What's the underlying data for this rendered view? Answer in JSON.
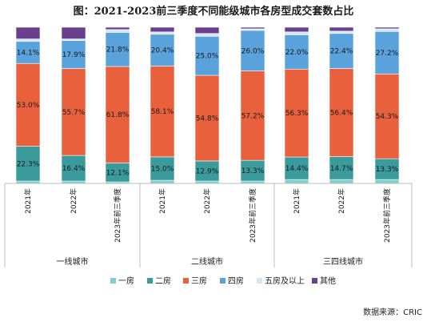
{
  "title": "图：2021-2023前三季度不同能级城市各房型成交套数占比",
  "source": "数据来源：CRIC",
  "chart_data": {
    "type": "bar",
    "stacked": true,
    "percent": true,
    "ylim": [
      0,
      100
    ],
    "groups": [
      {
        "name": "一线城市",
        "categories": [
          "2021年",
          "2022年",
          "2023年前三季度"
        ]
      },
      {
        "name": "二线城市",
        "categories": [
          "2021年",
          "2022年",
          "2023年前三季度"
        ]
      },
      {
        "name": "三四线城市",
        "categories": [
          "2021年",
          "2022年",
          "2023年前三季度"
        ]
      }
    ],
    "categories": [
      "2021年",
      "2022年",
      "2023年前三季度",
      "2021年",
      "2022年",
      "2023年前三季度",
      "2021年",
      "2022年",
      "2023年前三季度"
    ],
    "series": [
      {
        "name": "一房",
        "color": "#7fd0cc",
        "values": [
          1.5,
          1.5,
          1.0,
          2.0,
          1.5,
          1.5,
          2.5,
          2.5,
          2.5
        ],
        "labels": [
          "",
          "",
          "",
          "",
          "",
          "",
          "",
          "",
          ""
        ]
      },
      {
        "name": "二房",
        "color": "#3a9a9c",
        "values": [
          22.3,
          16.4,
          12.1,
          15.0,
          12.9,
          13.3,
          14.4,
          14.7,
          13.3
        ],
        "labels": [
          "22.3%",
          "16.4%",
          "12.1%",
          "15.0%",
          "12.9%",
          "13.3%",
          "14.4%",
          "14.7%",
          "13.3%"
        ]
      },
      {
        "name": "三房",
        "color": "#e8603c",
        "values": [
          53.0,
          55.7,
          61.8,
          58.1,
          54.8,
          57.2,
          56.3,
          56.4,
          54.3
        ],
        "labels": [
          "53.0%",
          "55.7%",
          "61.8%",
          "58.1%",
          "54.8%",
          "57.2%",
          "56.3%",
          "56.4%",
          "54.3%"
        ]
      },
      {
        "name": "四房",
        "color": "#5aa2dc",
        "values": [
          14.1,
          17.9,
          21.8,
          20.4,
          25.0,
          26.0,
          22.0,
          22.4,
          27.2
        ],
        "labels": [
          "14.1%",
          "17.9%",
          "21.8%",
          "20.4%",
          "25.0%",
          "26.0%",
          "22.0%",
          "22.4%",
          "27.2%"
        ]
      },
      {
        "name": "五房及以上",
        "color": "#d3e7f0",
        "values": [
          1.6,
          1.0,
          1.8,
          1.5,
          1.8,
          1.0,
          1.8,
          1.5,
          1.7
        ],
        "labels": [
          "",
          "",
          "",
          "",
          "",
          "",
          "",
          "",
          ""
        ]
      },
      {
        "name": "其他",
        "color": "#6a3f8e",
        "values": [
          7.5,
          7.5,
          1.5,
          3.0,
          4.0,
          1.0,
          3.0,
          2.5,
          1.0
        ],
        "labels": [
          "",
          "",
          "",
          "",
          "",
          "",
          "",
          "",
          ""
        ]
      }
    ],
    "legend_position": "bottom",
    "grid": false
  }
}
